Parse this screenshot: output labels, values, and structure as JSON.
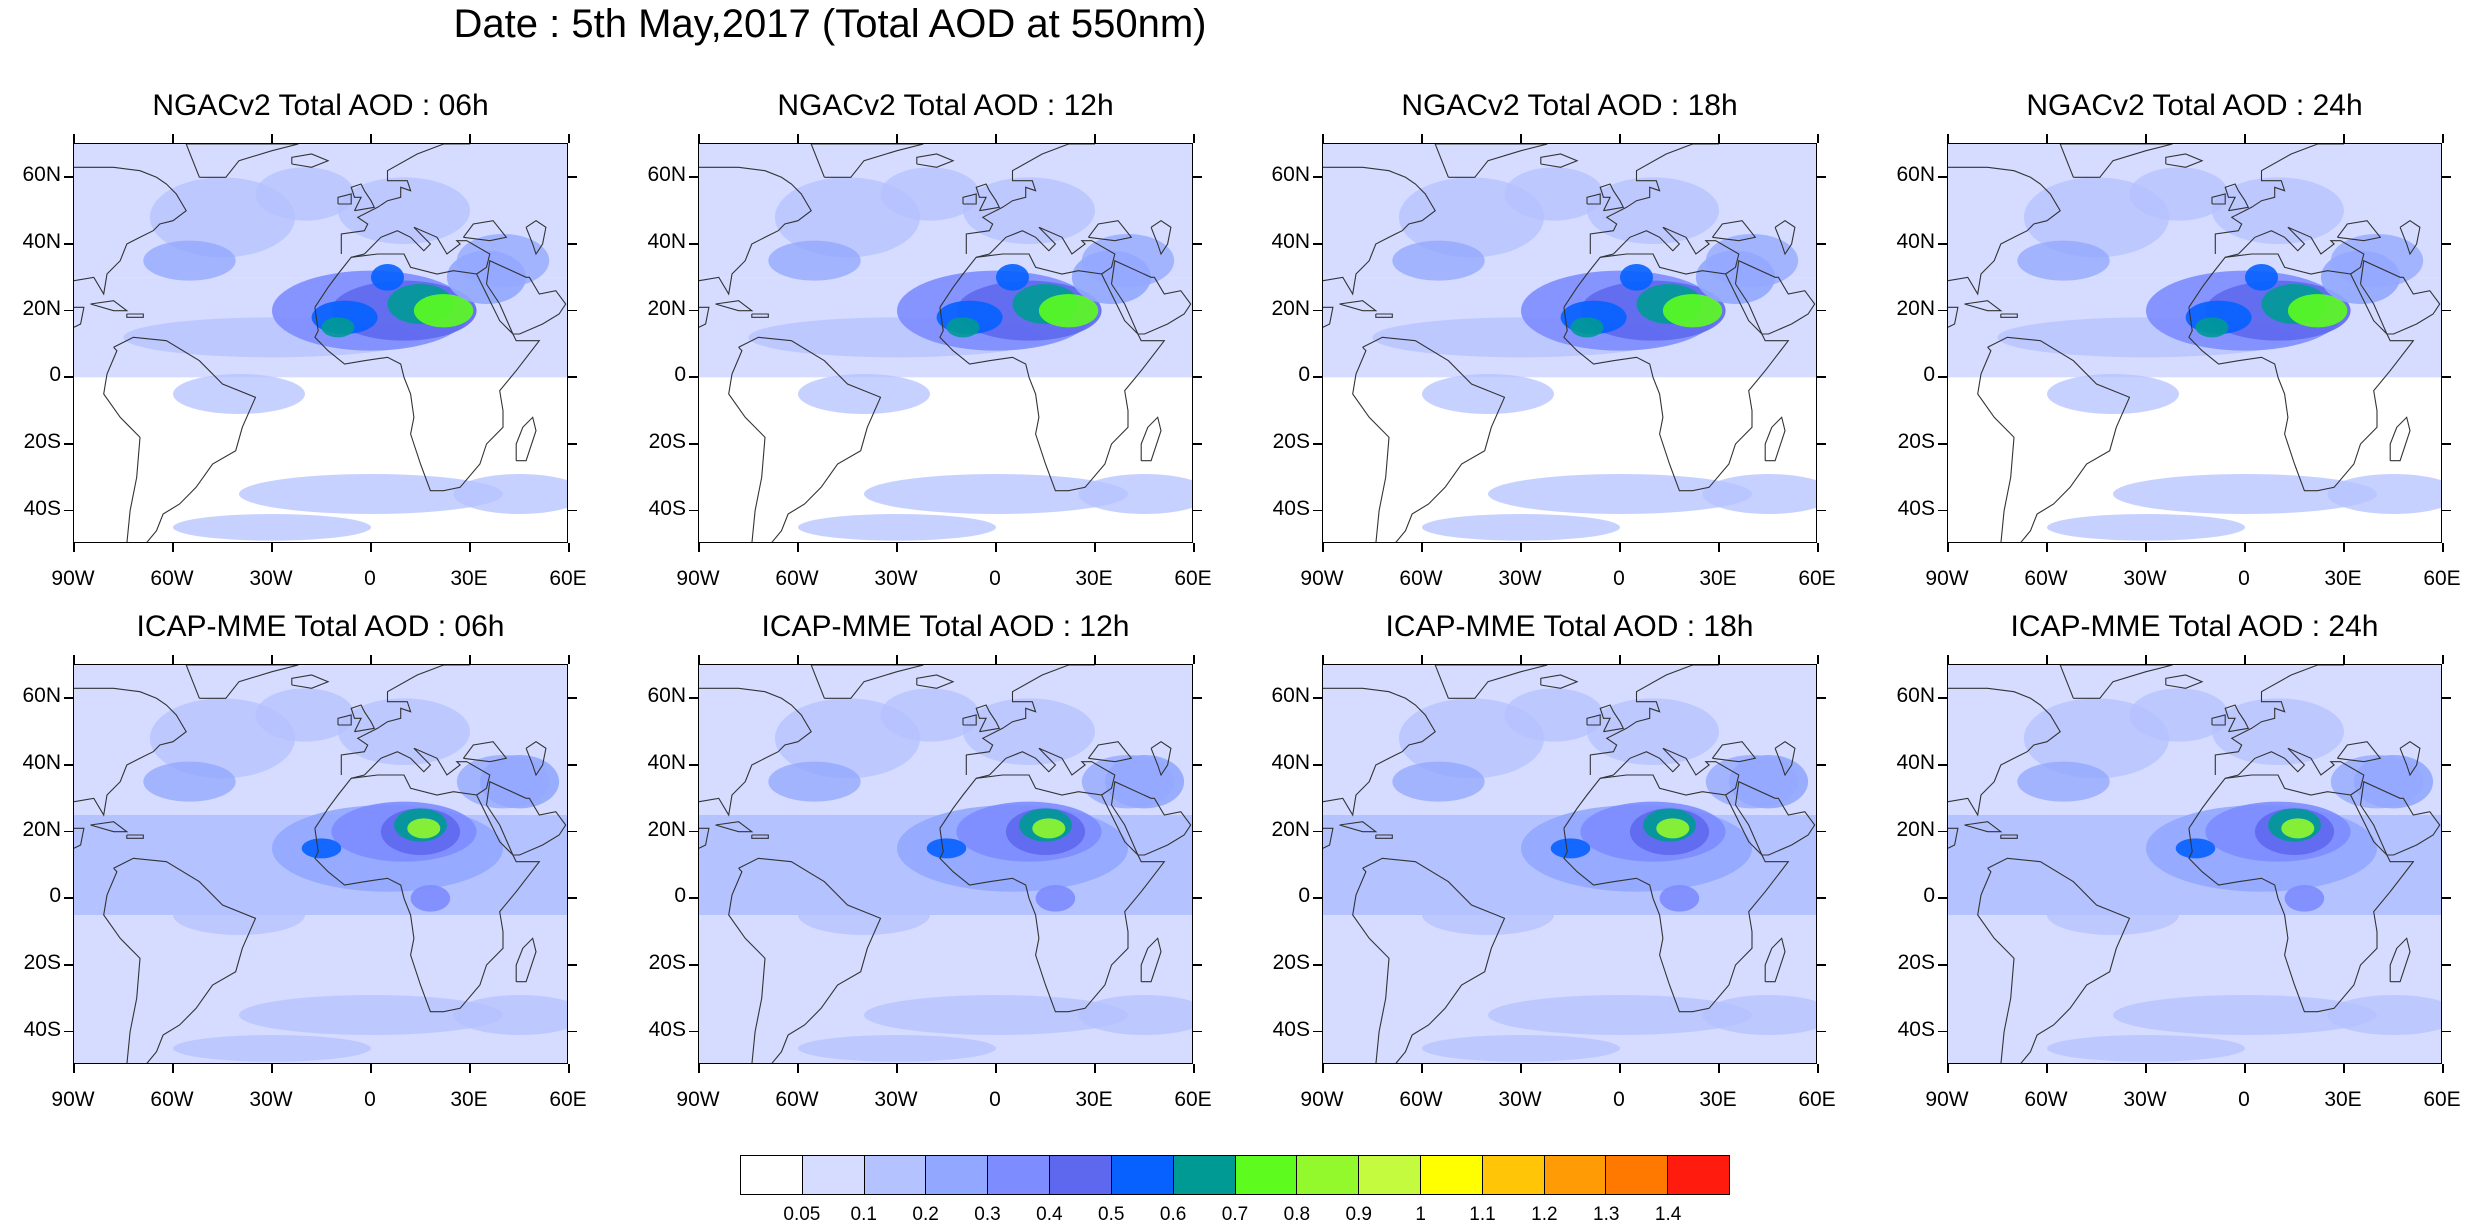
{
  "title": "Date : 5th May,2017 (Total AOD at 550nm)",
  "panels": [
    {
      "title": "NGACv2 Total AOD : 06h",
      "row": 0,
      "col": 0
    },
    {
      "title": "NGACv2 Total AOD : 12h",
      "row": 0,
      "col": 1
    },
    {
      "title": "NGACv2 Total AOD : 18h",
      "row": 0,
      "col": 2
    },
    {
      "title": "NGACv2 Total AOD : 24h",
      "row": 0,
      "col": 3
    },
    {
      "title": "ICAP-MME Total AOD : 06h",
      "row": 1,
      "col": 0
    },
    {
      "title": "ICAP-MME Total AOD : 12h",
      "row": 1,
      "col": 1
    },
    {
      "title": "ICAP-MME Total AOD : 18h",
      "row": 1,
      "col": 2
    },
    {
      "title": "ICAP-MME Total AOD : 24h",
      "row": 1,
      "col": 3
    }
  ],
  "map_extent": {
    "lon_min": -90,
    "lon_max": 60,
    "lat_min": -50,
    "lat_max": 70
  },
  "lat_ticks": [
    {
      "label": "60N",
      "value": 60
    },
    {
      "label": "40N",
      "value": 40
    },
    {
      "label": "20N",
      "value": 20
    },
    {
      "label": "0",
      "value": 0
    },
    {
      "label": "20S",
      "value": -20
    },
    {
      "label": "40S",
      "value": -40
    }
  ],
  "lon_ticks": [
    {
      "label": "90W",
      "value": -90
    },
    {
      "label": "60W",
      "value": -60
    },
    {
      "label": "30W",
      "value": -30
    },
    {
      "label": "0",
      "value": 0
    },
    {
      "label": "30E",
      "value": 30
    },
    {
      "label": "60E",
      "value": 60
    }
  ],
  "colorbar": {
    "labels": [
      "0.05",
      "0.1",
      "0.2",
      "0.3",
      "0.4",
      "0.5",
      "0.6",
      "0.7",
      "0.8",
      "0.9",
      "1",
      "1.1",
      "1.2",
      "1.3",
      "1.4"
    ],
    "colors": [
      "#ffffff",
      "#d5dcff",
      "#b4c2ff",
      "#92a7ff",
      "#7d8cff",
      "#5e68ee",
      "#0661ff",
      "#009a95",
      "#5dfc1e",
      "#93f82c",
      "#c5fb3e",
      "#ffff00",
      "#ffc506",
      "#ff9c05",
      "#ff7800",
      "#ff1b0d"
    ]
  },
  "colors": {
    "ocean_base": "#d5dcff",
    "plume": "#7d8cff",
    "coast": "#333333"
  }
}
